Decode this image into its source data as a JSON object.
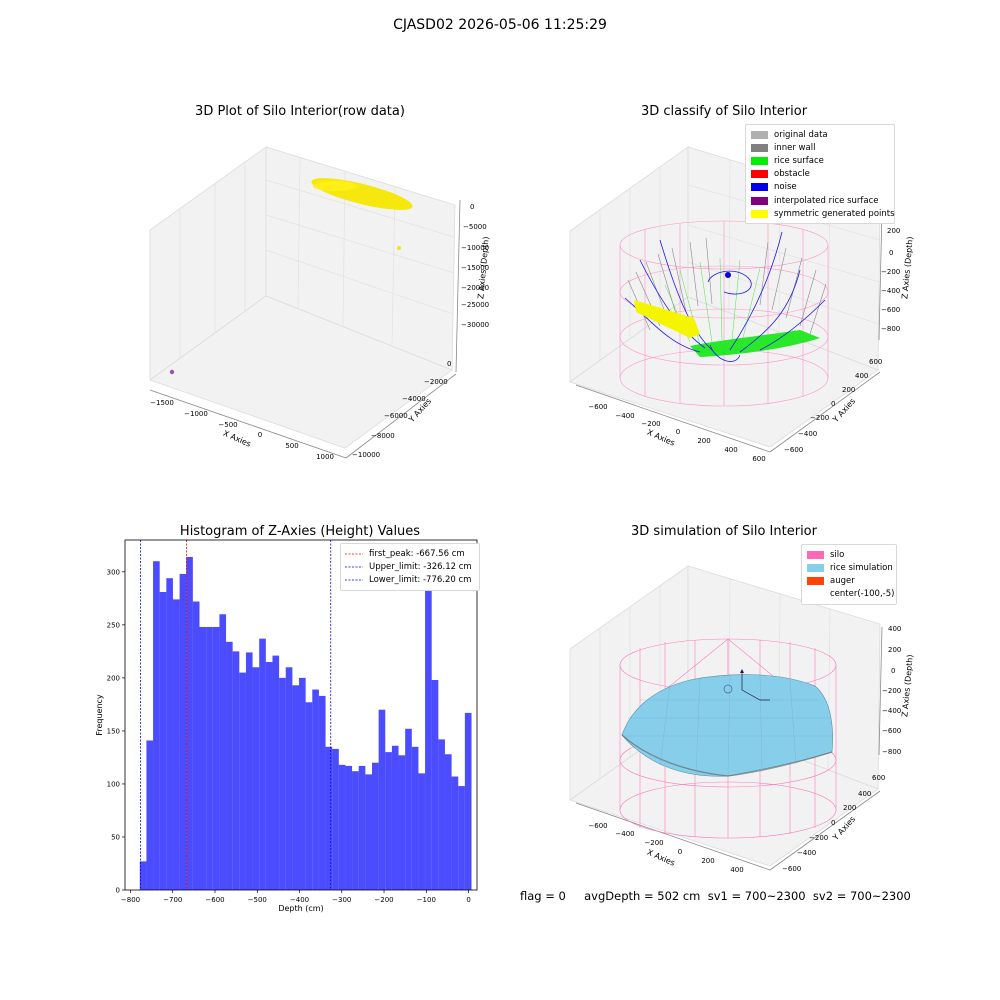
{
  "figure_title": "CJASD02 2026-05-06 11:25:29",
  "panels": {
    "raw": {
      "title": "3D Plot of Silo Interior(row data)",
      "xlabel": "X Axies",
      "ylabel": "Y Axies",
      "zlabel": "Z Axies (Depth)",
      "xticks": [
        "−1500",
        "−1000",
        "−500",
        "0",
        "500",
        "1000"
      ],
      "yticks": [
        "0",
        "−2000",
        "−4000",
        "−6000",
        "−8000",
        "−10000"
      ],
      "zticks": [
        "0",
        "−5000",
        "−10000",
        "−15000",
        "−20000",
        "−25000",
        "−30000"
      ]
    },
    "classify": {
      "title": "3D classify of Silo Interior",
      "xlabel": "X Axies",
      "ylabel": "Y Axies",
      "zlabel": "Z Axies (Depth)",
      "xticks": [
        "−600",
        "−400",
        "−200",
        "0",
        "200",
        "400",
        "600"
      ],
      "yticks": [
        "600",
        "400",
        "200",
        "0",
        "−200",
        "−400",
        "−600"
      ],
      "zticks": [
        "200",
        "0",
        "−200",
        "−400",
        "−600",
        "−800"
      ],
      "legend": [
        {
          "label": "original data",
          "color": "#b0b0b0"
        },
        {
          "label": "inner wall",
          "color": "#808080"
        },
        {
          "label": "rice surface",
          "color": "#00ee00"
        },
        {
          "label": "obstacle",
          "color": "#ff0000"
        },
        {
          "label": "noise",
          "color": "#0000ee"
        },
        {
          "label": "interpolated rice surface",
          "color": "#800080"
        },
        {
          "label": "symmetric generated points",
          "color": "#ffff00"
        }
      ]
    },
    "simulation": {
      "title": "3D simulation of Silo Interior",
      "xlabel": "X Axies",
      "ylabel": "Y Axies",
      "zlabel": "Z Axies (Depth)",
      "xticks": [
        "−600",
        "−400",
        "−200",
        "0",
        "200",
        "400"
      ],
      "yticks": [
        "600",
        "400",
        "200",
        "0",
        "−200",
        "−400",
        "−600"
      ],
      "zticks": [
        "400",
        "200",
        "0",
        "−200",
        "−400",
        "−600",
        "−800"
      ],
      "legend": [
        {
          "label": "silo",
          "color": "#ff69b4"
        },
        {
          "label": "rice simulation",
          "color": "#87ceeb"
        },
        {
          "label": "auger",
          "color": "#ff4500"
        },
        {
          "label": "center(-100,-5)",
          "color": ""
        }
      ]
    }
  },
  "chart_data": {
    "type": "bar",
    "title": "Histogram of Z-Axies (Height) Values",
    "xlabel": "Depth (cm)",
    "ylabel": "Frequency",
    "xlim": [
      -800,
      0
    ],
    "ylim": [
      0,
      330
    ],
    "xticks": [
      -800,
      -700,
      -600,
      -500,
      -400,
      -300,
      -200,
      -100,
      0
    ],
    "yticks": [
      0,
      50,
      100,
      150,
      200,
      250,
      300
    ],
    "bin_start": -778,
    "bin_width": 15.7,
    "counts": [
      27,
      141,
      310,
      281,
      294,
      274,
      298,
      314,
      272,
      248,
      248,
      248,
      260,
      234,
      225,
      205,
      224,
      210,
      237,
      215,
      221,
      200,
      210,
      193,
      200,
      177,
      189,
      183,
      135,
      133,
      118,
      117,
      112,
      117,
      109,
      120,
      170,
      130,
      136,
      127,
      152,
      135,
      110,
      287,
      198,
      142,
      128,
      107,
      98,
      167
    ],
    "color": "#0000ff",
    "vlines": [
      {
        "label": "first_peak: -667.56 cm",
        "x": -667.56,
        "color": "#ff0000"
      },
      {
        "label": "Upper_limit: -326.12 cm",
        "x": -326.12,
        "color": "#0000ff"
      },
      {
        "label": "Lower_limit: -776.20 cm",
        "x": -776.2,
        "color": "#0000ff"
      }
    ],
    "legend_position": "upper right"
  },
  "status": {
    "text": "flag = 0     avgDepth = 502 cm  sv1 = 700~2300  sv2 = 700~2300"
  }
}
